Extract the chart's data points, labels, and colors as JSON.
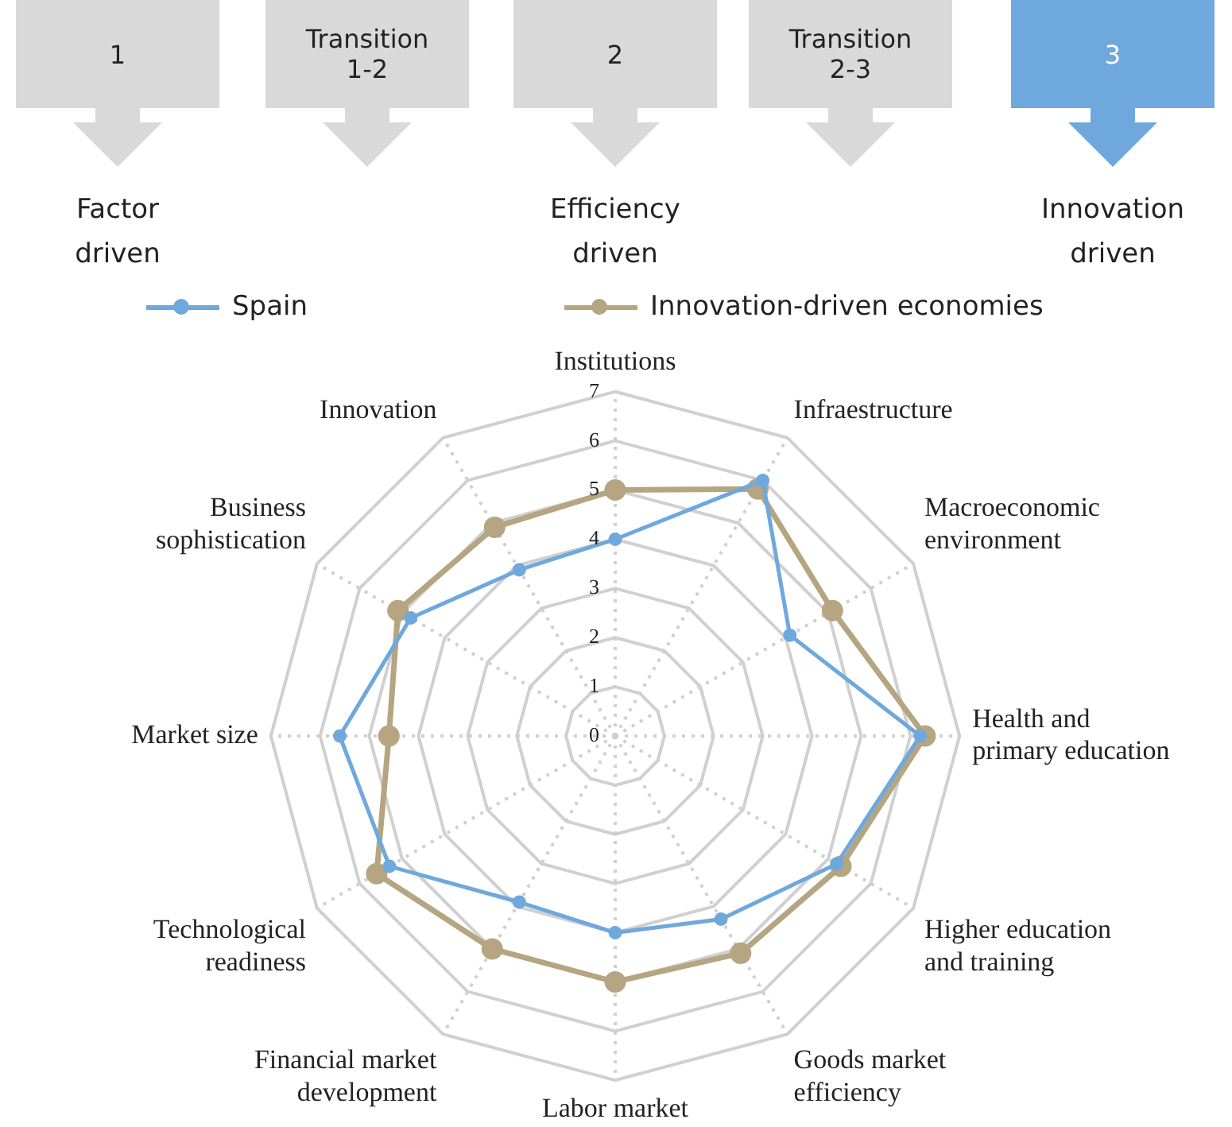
{
  "chart_data": {
    "type": "radar",
    "categories": [
      "Institutions",
      "Infraestructure",
      "Macroeconomic environment",
      "Health and primary education",
      "Higher education and training",
      "Goods market efficiency",
      "Labor market",
      "Financial market development",
      "Technological readiness",
      "Market size",
      "Business sophistication",
      "Innovation"
    ],
    "series": [
      {
        "name": "Spain",
        "color": "#6fa8dc",
        "values": [
          4.0,
          6.0,
          4.1,
          6.2,
          5.2,
          4.3,
          4.0,
          3.9,
          5.3,
          5.6,
          4.8,
          3.9
        ]
      },
      {
        "name": "Innovation-driven economies",
        "color": "#b5a581",
        "values": [
          5.0,
          5.8,
          5.1,
          6.3,
          5.3,
          5.1,
          5.0,
          5.0,
          5.6,
          4.6,
          5.1,
          4.9
        ]
      }
    ],
    "ylim": [
      0,
      7
    ],
    "yticks": [
      0,
      1,
      2,
      3,
      4,
      5,
      6,
      7
    ],
    "grid": true,
    "legend": "top",
    "marker": "circle",
    "line_style": "solid",
    "annotations": [
      "1",
      "Transition 1-2",
      "2",
      "Transition 2-3",
      "3",
      "Factor driven",
      "Efficiency driven",
      "Innovation driven"
    ]
  }
}
